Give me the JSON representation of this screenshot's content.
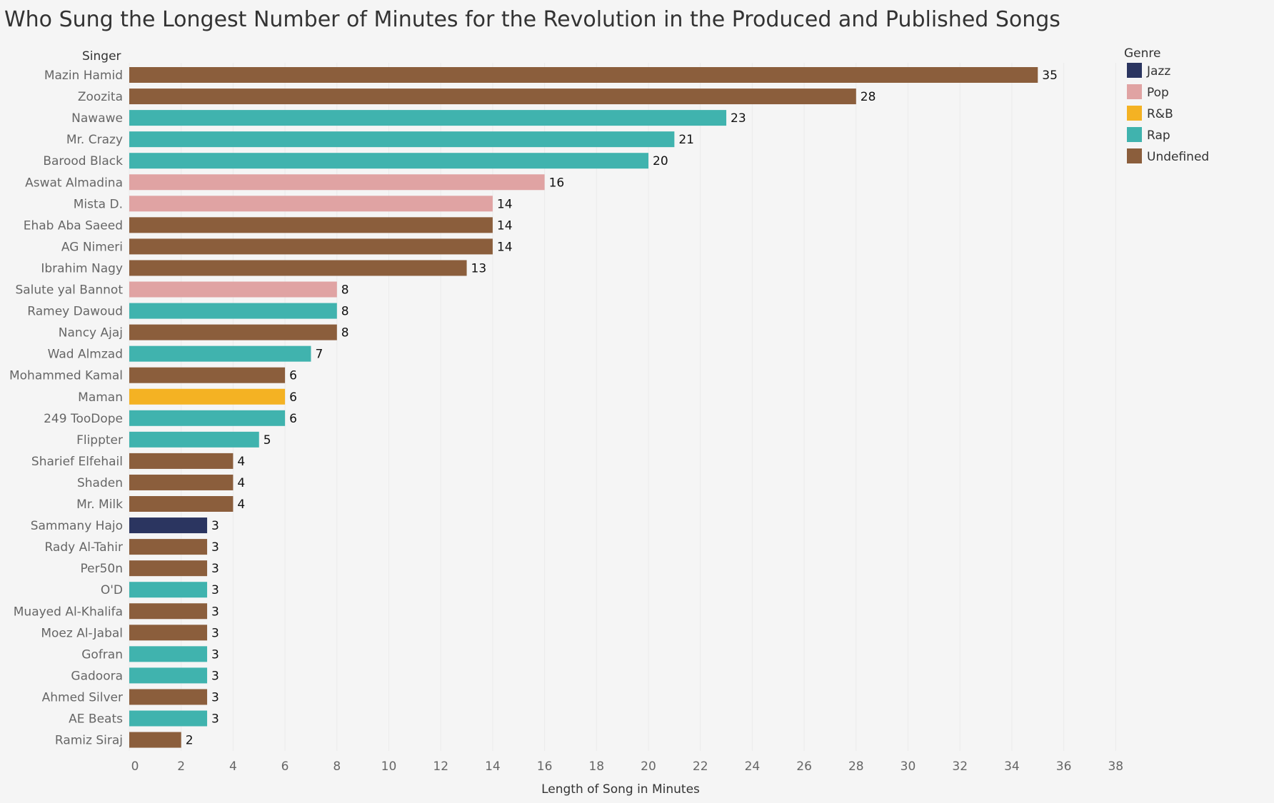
{
  "chart_data": {
    "type": "bar",
    "orientation": "horizontal",
    "title": "Who Sung the Longest Number of Minutes for the Revolution in the Produced and Published Songs",
    "xlabel": "Length of Song in Minutes",
    "ylabel": "Singer",
    "xlim": [
      0,
      38
    ],
    "xticks": [
      0,
      2,
      4,
      6,
      8,
      10,
      12,
      14,
      16,
      18,
      20,
      22,
      24,
      26,
      28,
      30,
      32,
      34,
      36,
      38
    ],
    "grid": true,
    "legend": {
      "title": "Genre",
      "placement": "top-right",
      "entries": [
        {
          "name": "Jazz",
          "color": "#2b3560"
        },
        {
          "name": "Pop",
          "color": "#e0a3a3"
        },
        {
          "name": "R&B",
          "color": "#f4b223"
        },
        {
          "name": "Rap",
          "color": "#40b3ae"
        },
        {
          "name": "Undefined",
          "color": "#8b5e3c"
        }
      ]
    },
    "data": [
      {
        "singer": "Mazin Hamid",
        "minutes": 35,
        "genre": "Undefined"
      },
      {
        "singer": "Zoozita",
        "minutes": 28,
        "genre": "Undefined"
      },
      {
        "singer": "Nawawe",
        "minutes": 23,
        "genre": "Rap"
      },
      {
        "singer": "Mr. Crazy",
        "minutes": 21,
        "genre": "Rap"
      },
      {
        "singer": "Barood Black",
        "minutes": 20,
        "genre": "Rap"
      },
      {
        "singer": "Aswat Almadina",
        "minutes": 16,
        "genre": "Pop"
      },
      {
        "singer": "Mista D.",
        "minutes": 14,
        "genre": "Pop"
      },
      {
        "singer": "Ehab Aba Saeed",
        "minutes": 14,
        "genre": "Undefined"
      },
      {
        "singer": "AG Nimeri",
        "minutes": 14,
        "genre": "Undefined"
      },
      {
        "singer": "Ibrahim Nagy",
        "minutes": 13,
        "genre": "Undefined"
      },
      {
        "singer": "Salute yal Bannot",
        "minutes": 8,
        "genre": "Pop"
      },
      {
        "singer": "Ramey Dawoud",
        "minutes": 8,
        "genre": "Rap"
      },
      {
        "singer": "Nancy Ajaj",
        "minutes": 8,
        "genre": "Undefined"
      },
      {
        "singer": "Wad Almzad",
        "minutes": 7,
        "genre": "Rap"
      },
      {
        "singer": "Mohammed Kamal",
        "minutes": 6,
        "genre": "Undefined"
      },
      {
        "singer": "Maman",
        "minutes": 6,
        "genre": "R&B"
      },
      {
        "singer": "249 TooDope",
        "minutes": 6,
        "genre": "Rap"
      },
      {
        "singer": "Flippter",
        "minutes": 5,
        "genre": "Rap"
      },
      {
        "singer": "Sharief Elfehail",
        "minutes": 4,
        "genre": "Undefined"
      },
      {
        "singer": "Shaden",
        "minutes": 4,
        "genre": "Undefined"
      },
      {
        "singer": "Mr. Milk",
        "minutes": 4,
        "genre": "Undefined"
      },
      {
        "singer": "Sammany Hajo",
        "minutes": 3,
        "genre": "Jazz"
      },
      {
        "singer": "Rady Al-Tahir",
        "minutes": 3,
        "genre": "Undefined"
      },
      {
        "singer": "Per50n",
        "minutes": 3,
        "genre": "Undefined"
      },
      {
        "singer": "O'D",
        "minutes": 3,
        "genre": "Rap"
      },
      {
        "singer": "Muayed Al-Khalifa",
        "minutes": 3,
        "genre": "Undefined"
      },
      {
        "singer": "Moez Al-Jabal",
        "minutes": 3,
        "genre": "Undefined"
      },
      {
        "singer": "Gofran",
        "minutes": 3,
        "genre": "Rap"
      },
      {
        "singer": "Gadoora",
        "minutes": 3,
        "genre": "Rap"
      },
      {
        "singer": "Ahmed Silver",
        "minutes": 3,
        "genre": "Undefined"
      },
      {
        "singer": "AE Beats",
        "minutes": 3,
        "genre": "Rap"
      },
      {
        "singer": "Ramiz Siraj",
        "minutes": 2,
        "genre": "Undefined"
      }
    ]
  }
}
